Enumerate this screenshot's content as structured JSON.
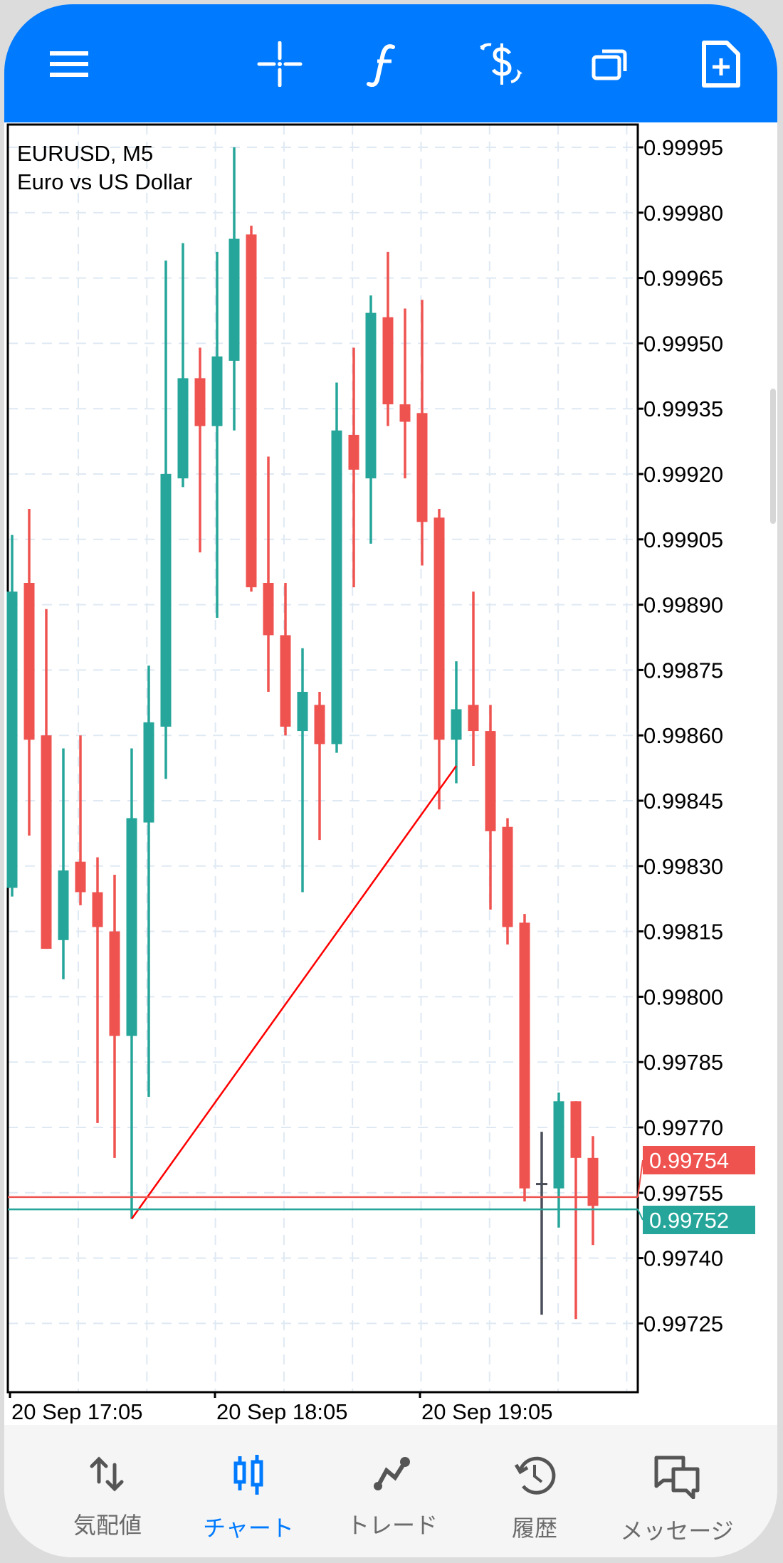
{
  "toolbar": {
    "icons": [
      "menu-icon",
      "crosshair-icon",
      "indicators-icon",
      "trade-dollar-icon",
      "windows-icon",
      "new-order-icon"
    ]
  },
  "chart": {
    "symbol_line": "EURUSD, M5",
    "description": "Euro vs US Dollar",
    "ask_price_label": "0.99754",
    "bid_price_label": "0.99752"
  },
  "colors": {
    "accent": "#007aff",
    "bull": "#26a69a",
    "bear": "#ef5350",
    "doji": "#4a4e59",
    "trendline": "#ff0000"
  },
  "chart_data": {
    "type": "candlestick",
    "title": "EURUSD, M5",
    "subtitle": "Euro vs US Dollar",
    "ylim": [
      0.99715,
      1.0
    ],
    "y_ticks": [
      "0.99995",
      "0.99980",
      "0.99965",
      "0.99950",
      "0.99935",
      "0.99920",
      "0.99905",
      "0.99890",
      "0.99875",
      "0.99860",
      "0.99845",
      "0.99830",
      "0.99815",
      "0.99800",
      "0.99785",
      "0.99770",
      "0.99755",
      "0.99740",
      "0.99725"
    ],
    "x_tick_labels": [
      {
        "label": "20 Sep 17:05",
        "index": 0
      },
      {
        "label": "20 Sep 18:05",
        "index": 12
      },
      {
        "label": "20 Sep 19:05",
        "index": 24
      }
    ],
    "ohlc": [
      [
        0.99825,
        0.99906,
        0.99823,
        0.99893
      ],
      [
        0.99895,
        0.99912,
        0.99837,
        0.99859
      ],
      [
        0.9986,
        0.99889,
        0.99811,
        0.99811
      ],
      [
        0.99813,
        0.99857,
        0.99804,
        0.99829
      ],
      [
        0.99831,
        0.9986,
        0.99821,
        0.99824
      ],
      [
        0.99824,
        0.99832,
        0.99771,
        0.99816
      ],
      [
        0.99815,
        0.99828,
        0.99763,
        0.99791
      ],
      [
        0.99791,
        0.99857,
        0.99749,
        0.99841
      ],
      [
        0.9984,
        0.99876,
        0.99777,
        0.99863
      ],
      [
        0.99862,
        0.99969,
        0.9985,
        0.9992
      ],
      [
        0.99919,
        0.99973,
        0.99917,
        0.99942
      ],
      [
        0.99942,
        0.99949,
        0.99902,
        0.99931
      ],
      [
        0.99931,
        0.99971,
        0.99887,
        0.99947
      ],
      [
        0.99946,
        0.99995,
        0.9993,
        0.99974
      ],
      [
        0.99975,
        0.99977,
        0.99893,
        0.99894
      ],
      [
        0.99895,
        0.99924,
        0.9987,
        0.99883
      ],
      [
        0.99883,
        0.99895,
        0.9986,
        0.99862
      ],
      [
        0.99861,
        0.9988,
        0.99824,
        0.9987
      ],
      [
        0.99867,
        0.9987,
        0.99836,
        0.99858
      ],
      [
        0.99858,
        0.99941,
        0.99856,
        0.9993
      ],
      [
        0.99929,
        0.99949,
        0.99894,
        0.99921
      ],
      [
        0.99919,
        0.99961,
        0.99904,
        0.99957
      ],
      [
        0.99956,
        0.99971,
        0.99931,
        0.99936
      ],
      [
        0.99936,
        0.99958,
        0.99919,
        0.99932
      ],
      [
        0.99934,
        0.9996,
        0.99899,
        0.99909
      ],
      [
        0.9991,
        0.99912,
        0.99843,
        0.99859
      ],
      [
        0.99859,
        0.99877,
        0.99849,
        0.99866
      ],
      [
        0.99867,
        0.99893,
        0.99853,
        0.99861
      ],
      [
        0.99861,
        0.99867,
        0.9982,
        0.99838
      ],
      [
        0.99839,
        0.99841,
        0.99812,
        0.99816
      ],
      [
        0.99817,
        0.99819,
        0.99753,
        0.99756
      ],
      [
        0.99757,
        0.99769,
        0.99727,
        0.99757
      ],
      [
        0.99756,
        0.99778,
        0.99747,
        0.99776
      ],
      [
        0.99776,
        0.99776,
        0.99726,
        0.99763
      ],
      [
        0.99763,
        0.99768,
        0.99743,
        0.99752
      ]
    ],
    "ask": 0.99754,
    "bid": 0.99752,
    "trendline": {
      "from": {
        "index": 7,
        "price": 0.99749
      },
      "to": {
        "index": 26,
        "price": 0.99853
      }
    },
    "grid": true
  },
  "nav": {
    "items": [
      {
        "label": "気配値",
        "icon": "quotes-arrows-icon",
        "active": false
      },
      {
        "label": "チャート",
        "icon": "candlestick-icon",
        "active": true
      },
      {
        "label": "トレード",
        "icon": "trade-line-icon",
        "active": false
      },
      {
        "label": "履歴",
        "icon": "history-icon",
        "active": false
      },
      {
        "label": "メッセージ",
        "icon": "messages-icon",
        "active": false
      }
    ]
  }
}
